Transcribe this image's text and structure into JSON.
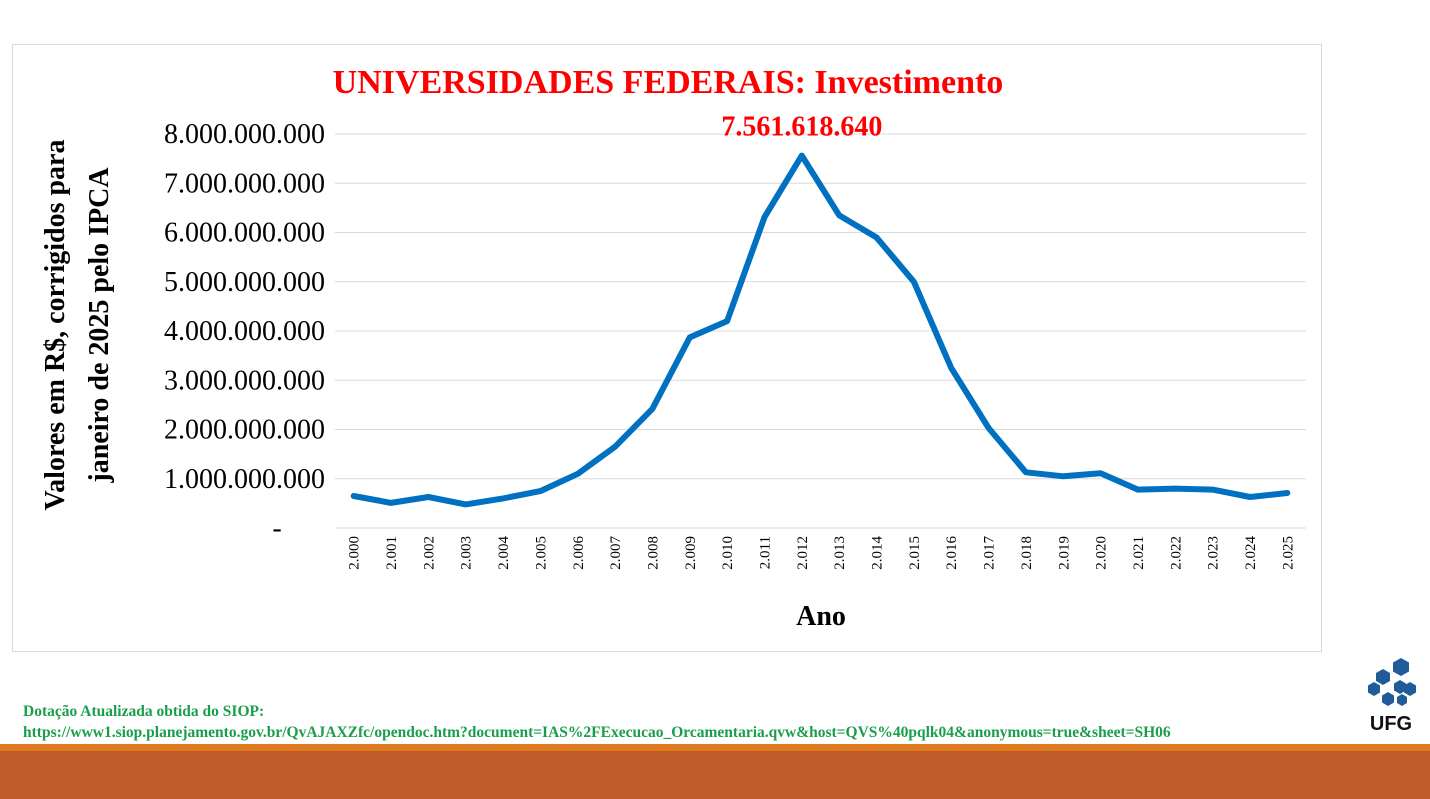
{
  "chart_data": {
    "type": "line",
    "title": "UNIVERSIDADES FEDERAIS: Investimento",
    "xlabel": "Ano",
    "ylabel": "Valores em R$, corrigidos para janeiro de 2025 pelo IPCA",
    "ylim": [
      0,
      8000000000
    ],
    "yticks": [
      {
        "value": 0,
        "label": "-"
      },
      {
        "value": 1000000000,
        "label": "1.000.000.000"
      },
      {
        "value": 2000000000,
        "label": "2.000.000.000"
      },
      {
        "value": 3000000000,
        "label": "3.000.000.000"
      },
      {
        "value": 4000000000,
        "label": "4.000.000.000"
      },
      {
        "value": 5000000000,
        "label": "5.000.000.000"
      },
      {
        "value": 6000000000,
        "label": "6.000.000.000"
      },
      {
        "value": 7000000000,
        "label": "7.000.000.000"
      },
      {
        "value": 8000000000,
        "label": "8.000.000.000"
      }
    ],
    "categories": [
      "2.000",
      "2.001",
      "2.002",
      "2.003",
      "2.004",
      "2.005",
      "2.006",
      "2.007",
      "2.008",
      "2.009",
      "2.010",
      "2.011",
      "2.012",
      "2.013",
      "2.014",
      "2.015",
      "2.016",
      "2.017",
      "2.018",
      "2.019",
      "2.020",
      "2.021",
      "2.022",
      "2.023",
      "2.024",
      "2.025"
    ],
    "series": [
      {
        "color": "#0070c0",
        "values": [
          650000000,
          510000000,
          630000000,
          480000000,
          600000000,
          750000000,
          1100000000,
          1650000000,
          2420000000,
          3870000000,
          4200000000,
          6310000000,
          7561618640,
          6350000000,
          5900000000,
          5000000000,
          3250000000,
          2030000000,
          1130000000,
          1050000000,
          1110000000,
          780000000,
          800000000,
          780000000,
          630000000,
          710000000
        ]
      }
    ],
    "annotations": [
      {
        "category": "2.012",
        "text": "7.561.618.640",
        "color": "#ff0000"
      }
    ],
    "grid": true,
    "legend": "none"
  },
  "source": {
    "line1": "Dotação Atualizada obtida do SIOP:",
    "line2": "https://www1.siop.planejamento.gov.br/QvAJAXZfc/opendoc.htm?document=IAS%2FExecucao_Orcamentaria.qvw&host=QVS%40pqlk04&anonymous=true&sheet=SH06"
  },
  "logo": {
    "text": "UFG",
    "color": "#1f5c99"
  },
  "colors": {
    "title": "#ff0000",
    "source_text": "#1a9e4b",
    "bar_orange": "#e07a1f",
    "bar_rust": "#bf5a2b"
  }
}
